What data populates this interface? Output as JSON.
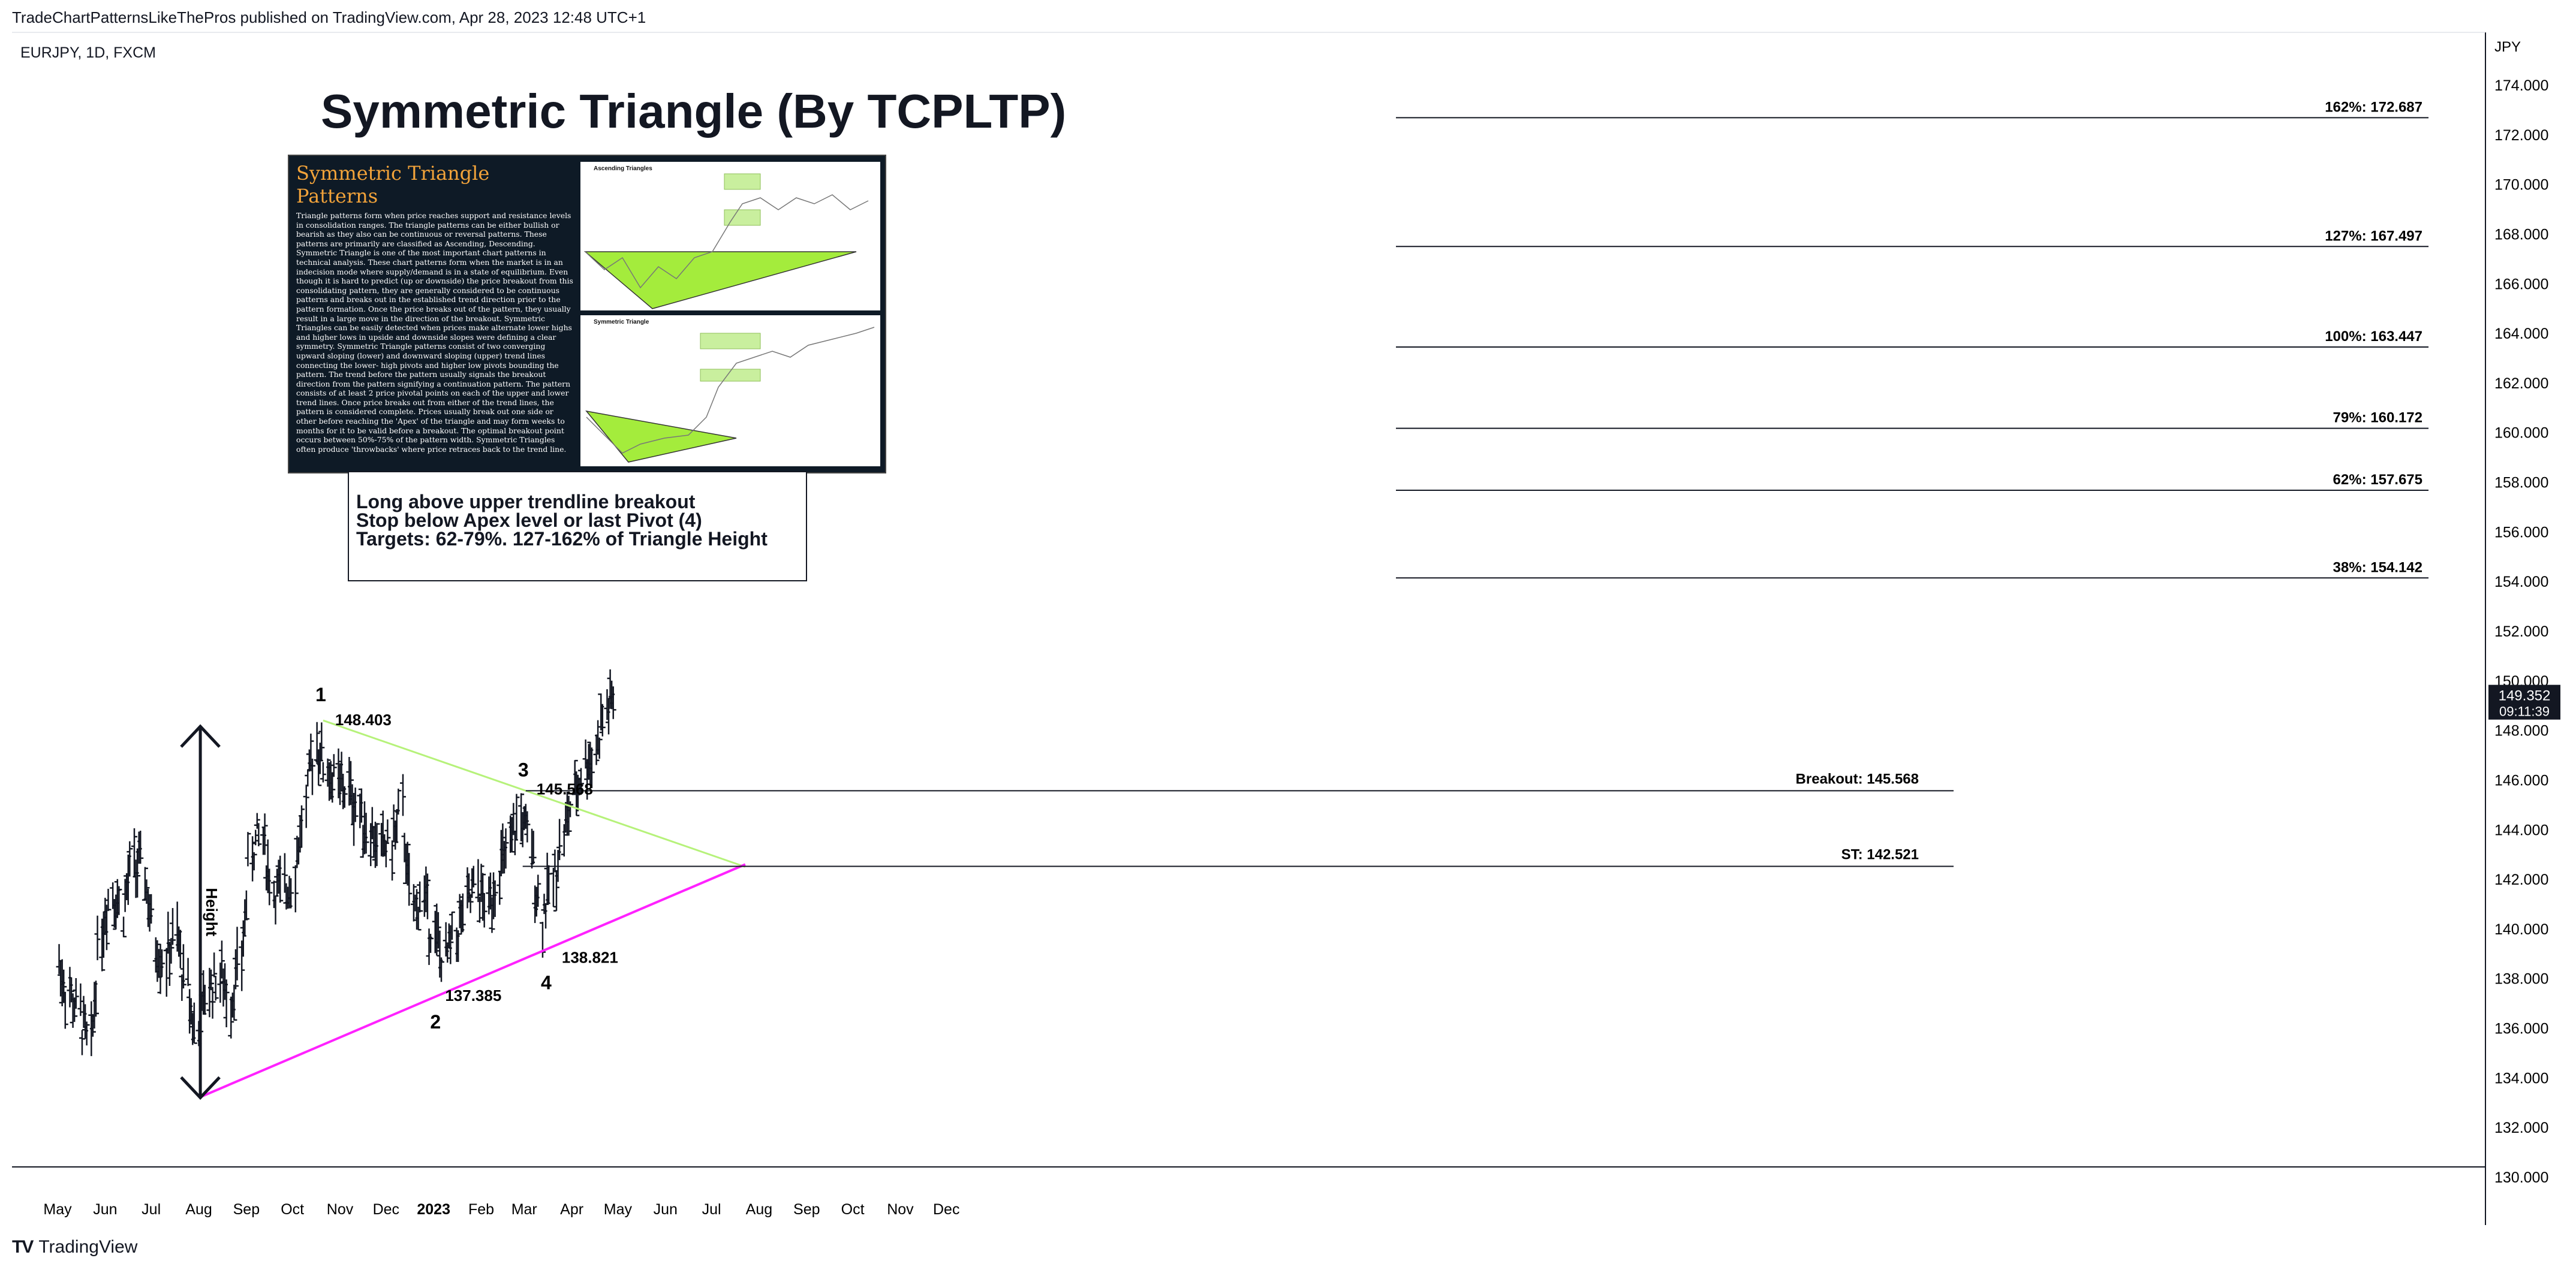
{
  "header": {
    "published": "TradeChartPatternsLikeThePros published on TradingView.com, Apr 28, 2023 12:48 UTC+1",
    "symbol": "EURJPY, 1D, FXCM",
    "brand": "TradingView"
  },
  "title": "Symmetric Triangle (By TCPLTP)",
  "infographic": {
    "heading": "Symmetric Triangle Patterns",
    "body": "Triangle patterns form when price reaches support and resistance levels in consolidation ranges. The triangle patterns can be either bullish or bearish as they also can be continuous or reversal patterns. These patterns are primarily are classified as Ascending, Descending. Symmetric Triangle is one of the most important chart patterns in technical analysis. These chart patterns form when the market is in an indecision mode where supply/demand is in a state of equilibrium. Even though it is hard to predict (up or downside) the price breakout from this consolidating pattern, they are generally considered to be continuous patterns and breaks out in the established trend direction prior to the pattern formation. Once the price breaks out of the pattern, they usually result in a large move in the direction of the breakout. Symmetric Triangles can be easily detected when prices make alternate lower highs and higher lows in upside and downside slopes were defining a clear symmetry. Symmetric Triangle patterns consist of two converging upward sloping (lower) and downward sloping (upper) trend lines connecting the lower- high pivots and higher low pivots bounding the pattern. The trend before the pattern usually signals the breakout direction from the pattern signifying a continuation pattern. The pattern consists of at least 2 price pivotal points on each of the upper and lower trend lines. Once price breaks out from either of the trend lines, the pattern is considered complete. Prices usually break out one side or other before reaching the 'Apex' of the triangle and may form weeks to months for it to be valid before a breakout. The optimal breakout point occurs between 50%-75% of the pattern width. Symmetric Triangles often produce 'throwbacks' where price retraces back to the trend line.",
    "panel1_title": "Ascending Triangles",
    "panel2_title": "Symmetric Triangle"
  },
  "notes": [
    "Long above upper trendline breakout",
    "Stop below Apex level or last Pivot (4)",
    "Targets: 62-79%. 127-162% of Triangle Height"
  ],
  "chart_data": {
    "type": "ohlc",
    "symbol": "EURJPY",
    "timeframe": "1D",
    "currency": "JPY",
    "ylim": [
      129.5,
      175.0
    ],
    "y_ticks": [
      "174.000",
      "172.000",
      "170.000",
      "168.000",
      "166.000",
      "164.000",
      "162.000",
      "160.000",
      "158.000",
      "156.000",
      "154.000",
      "152.000",
      "150.000",
      "148.000",
      "146.000",
      "144.000",
      "142.000",
      "140.000",
      "138.000",
      "136.000",
      "134.000",
      "132.000",
      "130.000"
    ],
    "x_ticks": [
      "May",
      "Jun",
      "Jul",
      "Aug",
      "Sep",
      "Oct",
      "Nov",
      "Dec",
      "2023",
      "Feb",
      "Mar",
      "Apr",
      "May",
      "Jun",
      "Jul",
      "Aug",
      "Sep",
      "Oct",
      "Nov",
      "Dec"
    ],
    "close_series": [
      [
        "2022-05-02",
        138.6
      ],
      [
        "2022-05-09",
        137.4
      ],
      [
        "2022-05-16",
        136.5
      ],
      [
        "2022-05-23",
        135.2
      ],
      [
        "2022-05-30",
        140.0
      ],
      [
        "2022-06-06",
        141.6
      ],
      [
        "2022-06-13",
        140.8
      ],
      [
        "2022-06-20",
        142.6
      ],
      [
        "2022-06-27",
        142.2
      ],
      [
        "2022-07-04",
        139.4
      ],
      [
        "2022-07-11",
        138.8
      ],
      [
        "2022-07-18",
        139.6
      ],
      [
        "2022-07-25",
        137.6
      ],
      [
        "2022-08-01",
        135.6
      ],
      [
        "2022-08-08",
        137.6
      ],
      [
        "2022-08-15",
        138.2
      ],
      [
        "2022-08-22",
        137.2
      ],
      [
        "2022-08-29",
        138.6
      ],
      [
        "2022-09-05",
        143.2
      ],
      [
        "2022-09-12",
        143.8
      ],
      [
        "2022-09-19",
        141.6
      ],
      [
        "2022-09-26",
        141.4
      ],
      [
        "2022-10-03",
        142.4
      ],
      [
        "2022-10-10",
        144.8
      ],
      [
        "2022-10-17",
        147.6
      ],
      [
        "2022-10-24",
        146.4
      ],
      [
        "2022-10-31",
        145.8
      ],
      [
        "2022-11-07",
        145.6
      ],
      [
        "2022-11-14",
        144.8
      ],
      [
        "2022-11-21",
        144.0
      ],
      [
        "2022-11-28",
        143.2
      ],
      [
        "2022-12-05",
        143.4
      ],
      [
        "2022-12-12",
        144.6
      ],
      [
        "2022-12-19",
        140.6
      ],
      [
        "2022-12-26",
        141.4
      ],
      [
        "2023-01-02",
        139.8
      ],
      [
        "2023-01-09",
        138.6
      ],
      [
        "2023-01-16",
        139.8
      ],
      [
        "2023-01-23",
        140.8
      ],
      [
        "2023-01-30",
        141.6
      ],
      [
        "2023-02-06",
        140.8
      ],
      [
        "2023-02-13",
        142.4
      ],
      [
        "2023-02-20",
        143.0
      ],
      [
        "2023-02-27",
        144.6
      ],
      [
        "2023-03-06",
        143.2
      ],
      [
        "2023-03-13",
        140.6
      ],
      [
        "2023-03-20",
        141.8
      ],
      [
        "2023-03-27",
        143.8
      ],
      [
        "2023-04-03",
        145.2
      ],
      [
        "2023-04-10",
        146.6
      ],
      [
        "2023-04-17",
        147.2
      ],
      [
        "2023-04-24",
        148.8
      ]
    ],
    "last_price": "149.352",
    "countdown": "09:11:39",
    "pivots": [
      {
        "label": "1",
        "price": "148.403",
        "date": "2022-10-21"
      },
      {
        "label": "2",
        "price": "137.385",
        "date": "2023-01-03"
      },
      {
        "label": "3",
        "price": "145.568",
        "date": "2023-03-02"
      },
      {
        "label": "4",
        "price": "138.821",
        "date": "2023-03-20"
      }
    ],
    "levels": [
      {
        "label": "Breakout: 145.568",
        "value": 145.568
      },
      {
        "label": "ST: 142.521",
        "value": 142.521
      }
    ],
    "fib_targets": [
      {
        "label": "162%: 172.687",
        "value": 172.687
      },
      {
        "label": "127%: 167.497",
        "value": 167.497
      },
      {
        "label": "100%: 163.447",
        "value": 163.447
      },
      {
        "label": "79%: 160.172",
        "value": 160.172
      },
      {
        "label": "62%: 157.675",
        "value": 157.675
      },
      {
        "label": "38%: 154.142",
        "value": 154.142
      }
    ],
    "trendlines": [
      {
        "name": "upper",
        "from": [
          "2022-10-21",
          148.4
        ],
        "to": [
          "2023-07-23",
          142.5
        ],
        "color": "#b6f27a"
      },
      {
        "name": "lower",
        "from": [
          "2022-08-01",
          133.2
        ],
        "to": [
          "2023-07-23",
          142.6
        ],
        "color": "#ff22ff"
      }
    ],
    "height_label": "Height",
    "height_range": [
      133.2,
      148.4
    ],
    "colors": {
      "bars": "#131722",
      "upper_trendline": "#b6f27a",
      "lower_trendline": "#ff22ff",
      "price_tag": "#131722"
    }
  }
}
